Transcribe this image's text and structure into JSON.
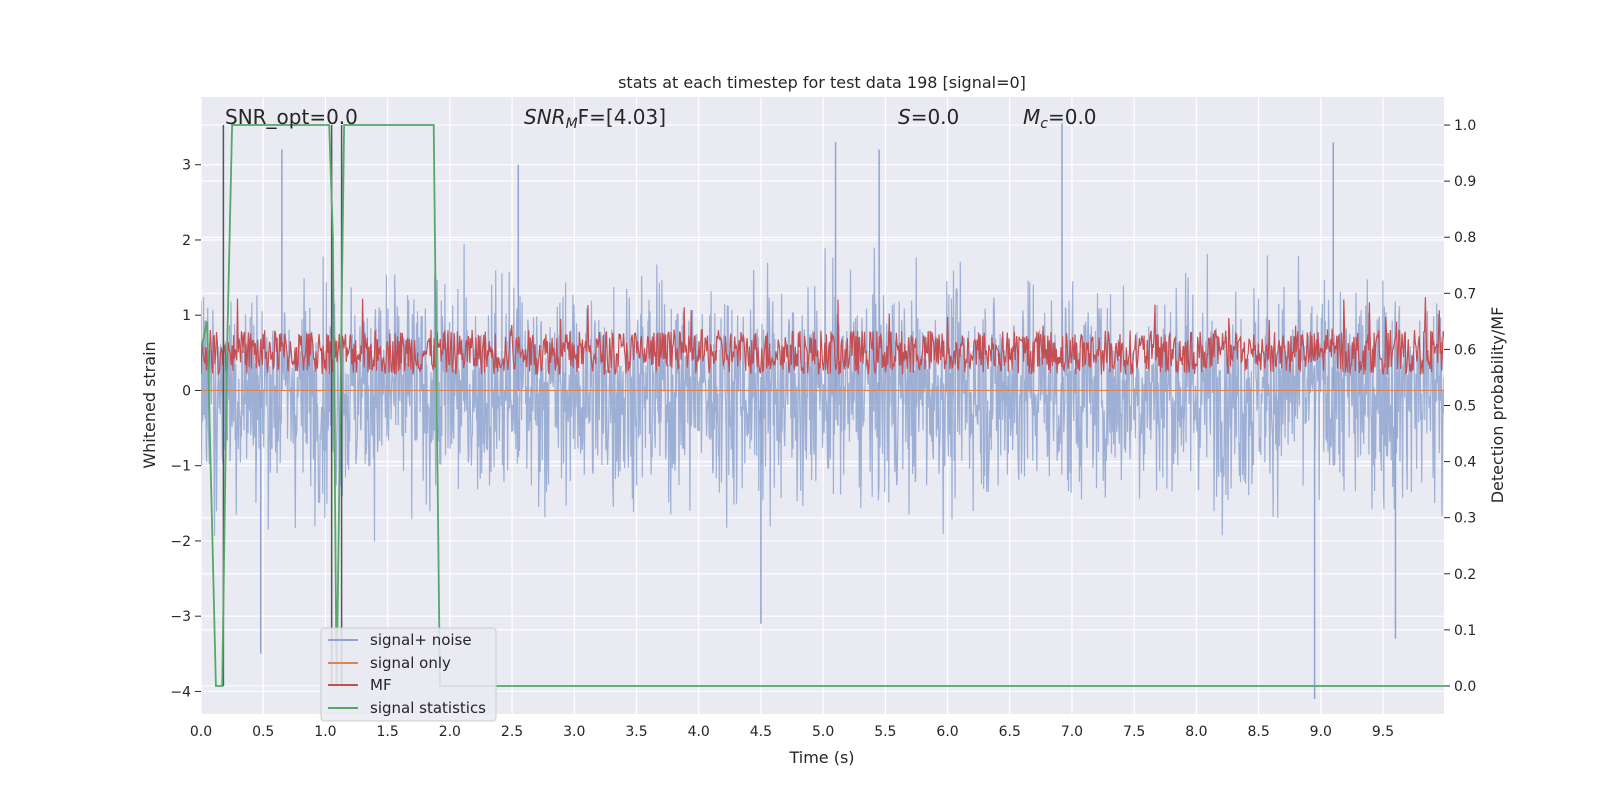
{
  "chart_data": {
    "type": "line",
    "title": "stats at each timestep for test data 198 [signal=0]",
    "xlabel": "Time (s)",
    "ylabel_left": "Whitened strain",
    "ylabel_right": "Detection probability/MF",
    "xlim": [
      0.0,
      9.99
    ],
    "ylim_left": [
      -4.3,
      3.9
    ],
    "ylim_right": [
      -0.05,
      1.05
    ],
    "x_ticks": [
      "0.0",
      "0.5",
      "1.0",
      "1.5",
      "2.0",
      "2.5",
      "3.0",
      "3.5",
      "4.0",
      "4.5",
      "5.0",
      "5.5",
      "6.0",
      "6.5",
      "7.0",
      "7.5",
      "8.0",
      "8.5",
      "9.0",
      "9.5"
    ],
    "y_ticks_left": [
      "3",
      "2",
      "1",
      "0",
      "−1",
      "−2",
      "−3",
      "−4"
    ],
    "y_ticks_right": [
      "1.0",
      "0.9",
      "0.8",
      "0.7",
      "0.6",
      "0.5",
      "0.4",
      "0.3",
      "0.2",
      "0.1",
      "0.0"
    ],
    "grid": true,
    "legend_position": "lower-left",
    "annotations": {
      "snr_opt": "SNR_opt=0.0",
      "snr_mf_main": "SNR",
      "snr_mf_sub": "M",
      "snr_mf_suffix": "F=[4.03]",
      "s_main": "S",
      "s_value": "=0.0",
      "mc_main": "M",
      "mc_sub": "c",
      "mc_value": "=0.0"
    },
    "series": [
      {
        "name": "signal+ noise",
        "color": "#8fa5cf",
        "axis": "left",
        "description_values": "noise envelope roughly between -2.8 and 3.0, with occasional spikes to 3.4 and -4.0",
        "envelope": {
          "min": -2.8,
          "max": 3.0
        },
        "spikes": [
          [
            0.48,
            -3.5
          ],
          [
            0.65,
            3.2
          ],
          [
            2.55,
            3.0
          ],
          [
            4.5,
            -3.1
          ],
          [
            5.1,
            3.3
          ],
          [
            5.45,
            3.2
          ],
          [
            6.92,
            3.55
          ],
          [
            8.95,
            -4.1
          ],
          [
            9.1,
            3.3
          ],
          [
            9.6,
            -3.3
          ]
        ]
      },
      {
        "name": "signal only",
        "color": "#dd8452",
        "axis": "left",
        "x": [
          0.0,
          9.99
        ],
        "y": [
          0.0,
          0.0
        ]
      },
      {
        "name": "MF",
        "color": "#c44e52",
        "axis": "right",
        "description_values": "fluctuates between about 0.55 and 0.64, peaks near 0.70",
        "band": [
          0.555,
          0.635
        ],
        "peak": 0.7
      },
      {
        "name": "signal statistics",
        "color": "#55a868",
        "axis": "right",
        "x": [
          0.0,
          0.05,
          0.12,
          0.17,
          0.21,
          0.25,
          1.03,
          1.06,
          1.09,
          1.12,
          1.15,
          1.18,
          1.87,
          1.92,
          1.96,
          9.99
        ],
        "y": [
          0.6,
          0.65,
          0.0,
          0.0,
          0.6,
          1.0,
          1.0,
          0.8,
          0.0,
          0.5,
          1.0,
          1.0,
          1.0,
          0.0,
          0.0,
          0.0
        ]
      }
    ],
    "vertical_markers": {
      "color": "#555555",
      "x": [
        0.18,
        1.05,
        1.13
      ]
    }
  }
}
